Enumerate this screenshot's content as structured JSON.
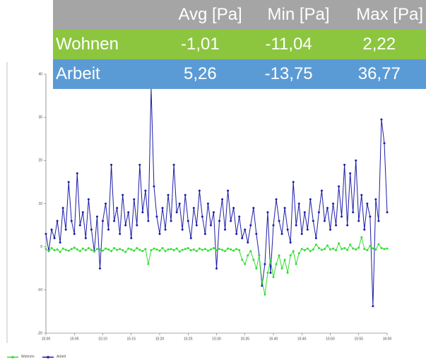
{
  "table": {
    "columns": [
      "Avg [Pa]",
      "Min [Pa]",
      "Max [Pa]"
    ],
    "rows": [
      [
        "Wohnen",
        "-1,01",
        "-11,04",
        "2,22"
      ],
      [
        "Arbeit",
        "5,26",
        "-13,75",
        "36,77"
      ]
    ]
  },
  "chart_data": {
    "type": "line",
    "x": [
      0,
      0.5,
      1,
      1.5,
      2,
      2.5,
      3,
      3.5,
      4,
      4.5,
      5,
      5.5,
      6,
      6.5,
      7,
      7.5,
      8,
      8.5,
      9,
      9.5,
      10,
      10.5,
      11,
      11.5,
      12,
      12.5,
      13,
      13.5,
      14,
      14.5,
      15,
      15.5,
      16,
      16.5,
      17,
      17.5,
      18,
      18.5,
      19,
      19.5,
      20,
      20.5,
      21,
      21.5,
      22,
      22.5,
      23,
      23.5,
      24,
      24.5,
      25,
      25.5,
      26,
      26.5,
      27,
      27.5,
      28,
      28.5,
      29,
      29.5,
      30,
      30.5,
      31,
      31.5,
      32,
      32.5,
      33,
      33.5,
      34,
      34.5,
      35,
      35.5,
      36,
      36.5,
      37,
      37.5,
      38,
      38.5,
      39,
      39.5,
      40,
      40.5,
      41,
      41.5,
      42,
      42.5,
      43,
      43.5,
      44,
      44.5,
      45,
      45.5,
      46,
      46.5,
      47,
      47.5,
      48,
      48.5,
      49,
      49.5,
      50,
      50.5,
      51,
      51.5,
      52,
      52.5,
      53,
      53.5,
      54,
      54.5,
      55,
      55.5,
      56,
      56.5,
      57,
      57.5,
      58,
      58.5,
      59,
      59.5,
      60
    ],
    "series": [
      {
        "name": "Arbeit",
        "color": "#1c1ca8",
        "values": [
          3,
          -1,
          4,
          2,
          6,
          1,
          9,
          4,
          15,
          6,
          3,
          17,
          5,
          8,
          2,
          11,
          4,
          -1,
          7,
          -5,
          6,
          10,
          4,
          19,
          6,
          9,
          3,
          12,
          5,
          8,
          2,
          11,
          5,
          19,
          8,
          13,
          6,
          36.77,
          14,
          7,
          3,
          9,
          4,
          12,
          6,
          19,
          8,
          10,
          4,
          12,
          6,
          2,
          9,
          5,
          13,
          7,
          3,
          10,
          5,
          8,
          -5,
          6,
          11,
          4,
          13,
          6,
          9,
          3,
          7,
          2,
          4,
          1,
          5,
          9,
          3,
          -2,
          -9,
          -4,
          8,
          -6,
          5,
          11,
          6,
          3,
          9,
          4,
          1,
          15,
          5,
          10,
          3,
          8,
          4,
          11,
          6,
          2,
          8,
          13,
          6,
          9,
          4,
          10,
          5,
          14,
          7,
          19,
          5,
          17,
          8,
          20,
          6,
          12,
          4,
          10,
          7,
          -13.75,
          11,
          6,
          29.5,
          24,
          8
        ]
      },
      {
        "name": "Wohnen",
        "color": "#33dd33",
        "values": [
          -0.5,
          -1,
          -0.3,
          -0.8,
          -0.6,
          -1.2,
          -0.4,
          -0.7,
          -0.9,
          -0.5,
          -0.2,
          -0.6,
          -1,
          -0.4,
          -0.8,
          -0.3,
          -0.7,
          -1.1,
          -0.5,
          -0.6,
          -0.9,
          -0.4,
          -0.6,
          -1,
          -0.3,
          -0.7,
          -0.5,
          -0.8,
          -1.2,
          -0.4,
          -0.6,
          -0.9,
          -0.3,
          -0.7,
          -1,
          -0.5,
          -4,
          -0.8,
          -0.4,
          -0.6,
          -0.9,
          -0.3,
          -1,
          -0.6,
          -0.5,
          -0.8,
          -0.4,
          -1.1,
          -0.7,
          -0.5,
          -0.3,
          -0.8,
          -0.6,
          -1,
          -0.4,
          -0.7,
          -0.5,
          -0.9,
          -0.6,
          -0.3,
          -0.8,
          -0.5,
          -0.7,
          -1,
          -0.4,
          -0.6,
          -0.9,
          -0.5,
          -0.8,
          -3,
          -4,
          -2,
          -1,
          -3,
          -5,
          -2,
          -8,
          -11.04,
          -6,
          -3,
          -7,
          -4,
          -2,
          -5,
          -3,
          -6,
          -2,
          -1,
          -4,
          -1.5,
          -0.5,
          -0.8,
          -0.4,
          -1,
          -0.6,
          0.5,
          -0.3,
          -0.7,
          -0.5,
          0.3,
          -0.6,
          -0.4,
          -0.8,
          0.8,
          -0.5,
          -0.3,
          -0.7,
          0.5,
          -0.4,
          -0.6,
          -0.2,
          2.22,
          -0.5,
          -0.8,
          0.2,
          -0.4,
          -0.6,
          0.6,
          -0.3,
          -0.5,
          -0.4
        ]
      }
    ],
    "xlim": [
      0,
      60
    ],
    "xticks": [
      {
        "value": 0,
        "label": "15:00"
      },
      {
        "value": 5,
        "label": "15:05"
      },
      {
        "value": 10,
        "label": "15:10"
      },
      {
        "value": 15,
        "label": "15:15"
      },
      {
        "value": 20,
        "label": "15:20"
      },
      {
        "value": 25,
        "label": "15:25"
      },
      {
        "value": 30,
        "label": "15:30"
      },
      {
        "value": 35,
        "label": "15:35"
      },
      {
        "value": 40,
        "label": "15:40"
      },
      {
        "value": 45,
        "label": "15:45"
      },
      {
        "value": 50,
        "label": "15:50"
      },
      {
        "value": 55,
        "label": "15:55"
      },
      {
        "value": 60,
        "label": "16:00"
      }
    ],
    "ylim": [
      -20,
      40
    ],
    "yticks": [
      -20,
      -10,
      0,
      10,
      20,
      30,
      40
    ],
    "legend": "bottom-left"
  }
}
